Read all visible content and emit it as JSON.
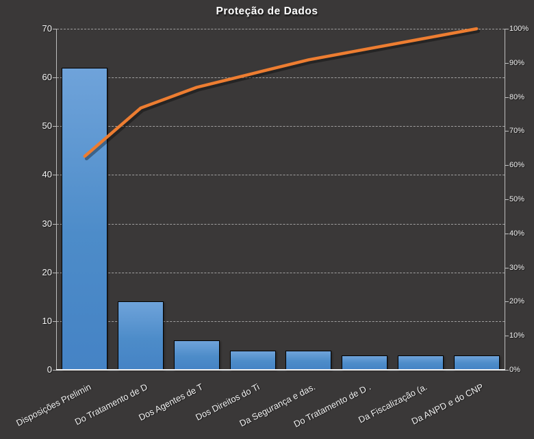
{
  "window": {
    "background": "#3A3838"
  },
  "chart_data": {
    "type": "pareto (bar + cumulative line)",
    "title": "Proteção de Dados",
    "legend": "none",
    "grid": "horizontal dashed",
    "categories": [
      "Disposições Prelimin",
      "Do Tratamento de D",
      "Dos Agentes de T",
      "Dos Direitos do Ti",
      "Da Segurança e das.",
      "Do Tratamento de D .",
      "Da Fiscalização (a.",
      "Da ANPD e do CNP"
    ],
    "series": [
      {
        "name": "frequency-bars",
        "type": "bar",
        "axis": "left",
        "values": [
          62,
          14,
          6,
          4,
          4,
          3,
          3,
          3
        ],
        "color_top": "#6FA3DA",
        "color_bottom": "#4583C5",
        "border_color": "#000000"
      },
      {
        "name": "cumulative-percent-line",
        "type": "line",
        "axis": "right",
        "values_pct": [
          62.63,
          76.77,
          82.83,
          86.87,
          90.91,
          93.94,
          96.97,
          100
        ],
        "color": "#ED7D31"
      }
    ],
    "left_axis": {
      "min": 0,
      "max": 70,
      "tick_step": 10,
      "tick_labels": [
        "0",
        "10",
        "20",
        "30",
        "40",
        "50",
        "60",
        "70"
      ]
    },
    "right_axis": {
      "min": 0,
      "max": 100,
      "tick_step": 10,
      "tick_labels": [
        "0%",
        "10%",
        "20%",
        "30%",
        "40%",
        "50%",
        "60%",
        "70%",
        "80%",
        "90%",
        "100%"
      ]
    }
  },
  "colors": {
    "background": "#3A3838",
    "text": "#F2F2F2",
    "gridline": "#DADADA",
    "axis_line": "#BFBFBF",
    "bottom_axis_line": "#F2F2F2",
    "bar_fill": "#4D8CC9",
    "line": "#ED7D31"
  }
}
